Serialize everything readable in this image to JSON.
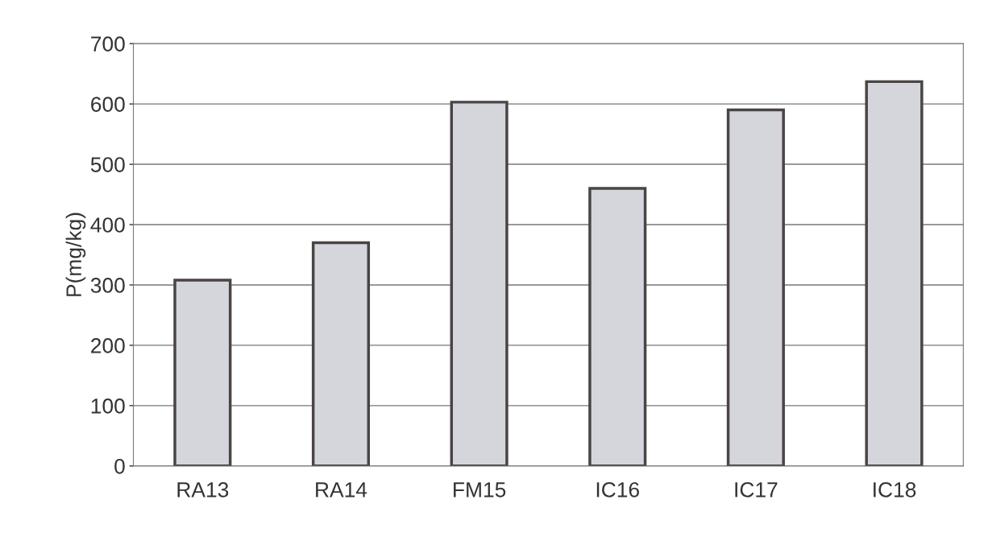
{
  "chart_data": {
    "type": "bar",
    "ylabel": "P(mg/kg)",
    "categories": [
      "RA13",
      "RA14",
      "FM15",
      "IC16",
      "IC17",
      "IC18"
    ],
    "values": [
      308,
      370,
      603,
      460,
      590,
      637
    ],
    "color": "#d4d6dc",
    "ylim": [
      0,
      700
    ],
    "yticks": [
      0,
      100,
      200,
      300,
      400,
      500,
      600,
      700
    ],
    "grid": "y"
  }
}
